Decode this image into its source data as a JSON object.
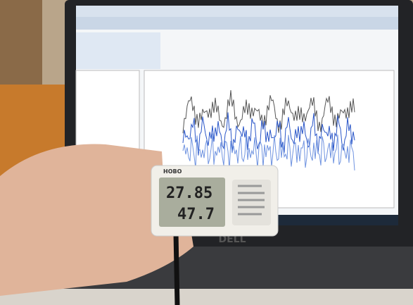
{
  "device": {
    "brand": "HOBO",
    "temperature": "27.85",
    "humidity": "47.7"
  },
  "laptop": {
    "brand": "DELL"
  }
}
